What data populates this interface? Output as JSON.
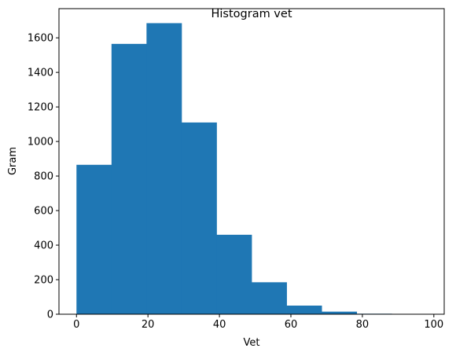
{
  "chart_data": {
    "type": "bar",
    "title": "Histogram vet",
    "xlabel": "Vet",
    "ylabel": "Gram",
    "bin_edges": [
      0,
      9.8,
      19.6,
      29.4,
      39.2,
      49.0,
      58.8,
      68.6,
      78.4,
      88.2,
      98.0
    ],
    "values": [
      865,
      1565,
      1685,
      1110,
      460,
      185,
      50,
      15,
      3,
      2
    ],
    "xlim": [
      -4.9,
      102.9
    ],
    "ylim": [
      0,
      1769
    ],
    "xticks": [
      0,
      20,
      40,
      60,
      80,
      100
    ],
    "xtick_labels": [
      "0",
      "20",
      "40",
      "60",
      "80",
      "100"
    ],
    "yticks": [
      0,
      200,
      400,
      600,
      800,
      1000,
      1200,
      1400,
      1600
    ],
    "ytick_labels": [
      "0",
      "200",
      "400",
      "600",
      "800",
      "1000",
      "1200",
      "1400",
      "1600"
    ],
    "grid": false,
    "colors": {
      "bar": "#1f77b4",
      "axis": "#000000",
      "background": "#ffffff"
    }
  }
}
